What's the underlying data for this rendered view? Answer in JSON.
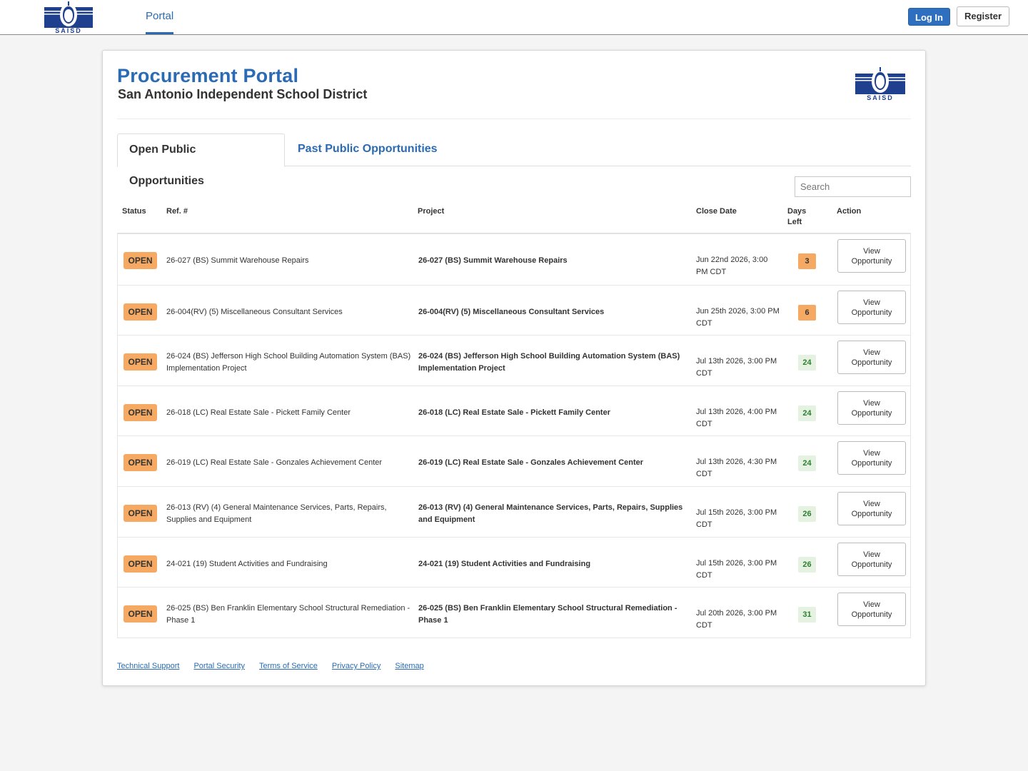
{
  "nav": {
    "logo_text": "SAISD",
    "portal_label": "Portal",
    "login_label": "Log In",
    "register_label": "Register"
  },
  "header": {
    "title": "Procurement Portal",
    "subtitle": "San Antonio Independent School District",
    "logo_text": "SAISD"
  },
  "tabs": [
    {
      "label": "Open Public Opportunities",
      "active": true
    },
    {
      "label": "Past Public Opportunities",
      "active": false
    }
  ],
  "search": {
    "placeholder": "Search"
  },
  "table": {
    "headers": {
      "status": "Status",
      "ref": "Ref. #",
      "project": "Project",
      "close_date": "Close Date",
      "days_left_1": "Days",
      "days_left_2": "Left",
      "action": "Action"
    },
    "rows": [
      {
        "status": "OPEN",
        "ref": "26-027 (BS) Summit Warehouse Repairs",
        "project": "26-027 (BS) Summit Warehouse Repairs",
        "close_date": "Jun 22nd 2026, 3:00 PM CDT",
        "days_left": "3",
        "action_1": "View",
        "action_2": "Opportunity"
      },
      {
        "status": "OPEN",
        "ref": "26-004(RV) (5) Miscellaneous Consultant Services",
        "project": "26-004(RV) (5) Miscellaneous Consultant Services",
        "close_date": "Jun 25th 2026, 3:00 PM CDT",
        "days_left": "6",
        "action_1": "View",
        "action_2": "Opportunity"
      },
      {
        "status": "OPEN",
        "ref": "26-024 (BS) Jefferson High School Building Automation System (BAS) Implementation Project",
        "project": "26-024 (BS) Jefferson High School Building Automation System (BAS) Implementation Project",
        "close_date": "Jul 13th 2026, 3:00 PM CDT",
        "days_left": "24",
        "action_1": "View",
        "action_2": "Opportunity"
      },
      {
        "status": "OPEN",
        "ref": "26-018 (LC) Real Estate Sale - Pickett Family Center",
        "project": "26-018 (LC) Real Estate Sale - Pickett Family Center",
        "close_date": "Jul 13th 2026, 4:00 PM CDT",
        "days_left": "24",
        "action_1": "View",
        "action_2": "Opportunity"
      },
      {
        "status": "OPEN",
        "ref": "26-019 (LC) Real Estate Sale - Gonzales Achievement Center",
        "project": "26-019 (LC) Real Estate Sale - Gonzales Achievement Center",
        "close_date": "Jul 13th 2026, 4:30 PM CDT",
        "days_left": "24",
        "action_1": "View",
        "action_2": "Opportunity"
      },
      {
        "status": "OPEN",
        "ref": "26-013 (RV) (4) General Maintenance Services, Parts, Repairs, Supplies and Equipment",
        "project": "26-013 (RV) (4) General Maintenance Services, Parts, Repairs, Supplies and Equipment",
        "close_date": "Jul 15th 2026, 3:00 PM CDT",
        "days_left": "26",
        "action_1": "View",
        "action_2": "Opportunity"
      },
      {
        "status": "OPEN",
        "ref": "24-021 (19) Student Activities and Fundraising",
        "project": "24-021 (19) Student Activities and Fundraising",
        "close_date": "Jul 15th 2026, 3:00 PM CDT",
        "days_left": "26",
        "action_1": "View",
        "action_2": "Opportunity"
      },
      {
        "status": "OPEN",
        "ref": "26-025 (BS) Ben Franklin Elementary School Structural Remediation - Phase 1",
        "project": "26-025 (BS) Ben Franklin Elementary School Structural Remediation - Phase 1",
        "close_date": "Jul 20th 2026, 3:00 PM CDT",
        "days_left": "31",
        "action_1": "View",
        "action_2": "Opportunity"
      }
    ]
  },
  "footer": {
    "links": [
      "Technical Support",
      "Portal Security",
      "Terms of Service",
      "Privacy Policy",
      "Sitemap"
    ]
  },
  "colors": {
    "brand_blue": "#2a6bb3",
    "logo_navy": "#1f3f8f",
    "open_orange": "#f5a962",
    "days_green_bg": "#e5f2e2",
    "days_green_text": "#2e7d32"
  }
}
